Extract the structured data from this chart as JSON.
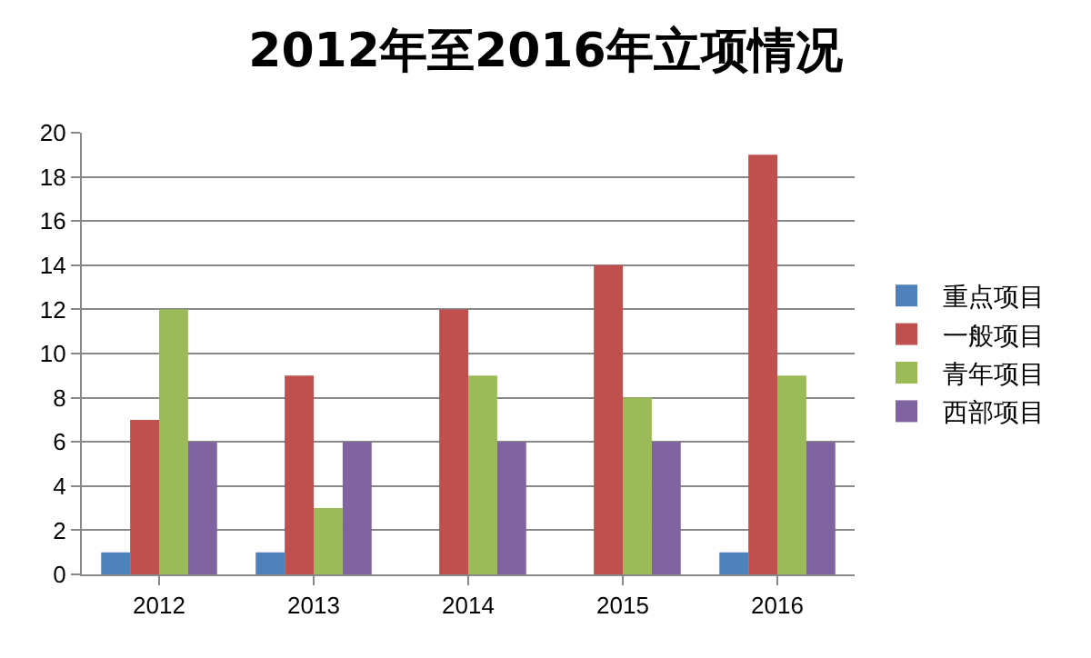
{
  "chart_data": {
    "type": "bar",
    "title": "2012年至2016年立项情况",
    "categories": [
      "2012",
      "2013",
      "2014",
      "2015",
      "2016"
    ],
    "series": [
      {
        "name": "重点项目",
        "color": "#4f81bd",
        "values": [
          1,
          1,
          0,
          0,
          1
        ]
      },
      {
        "name": "一般项目",
        "color": "#c0504d",
        "values": [
          7,
          9,
          12,
          14,
          19
        ]
      },
      {
        "name": "青年项目",
        "color": "#9bbb59",
        "values": [
          12,
          3,
          9,
          8,
          9
        ]
      },
      {
        "name": "西部项目",
        "color": "#8064a2",
        "values": [
          6,
          6,
          6,
          6,
          6
        ]
      }
    ],
    "ylim": [
      0,
      20
    ],
    "yticks": [
      0,
      2,
      4,
      6,
      8,
      10,
      12,
      14,
      16,
      18,
      20
    ],
    "grid": "y",
    "legend": "right"
  }
}
